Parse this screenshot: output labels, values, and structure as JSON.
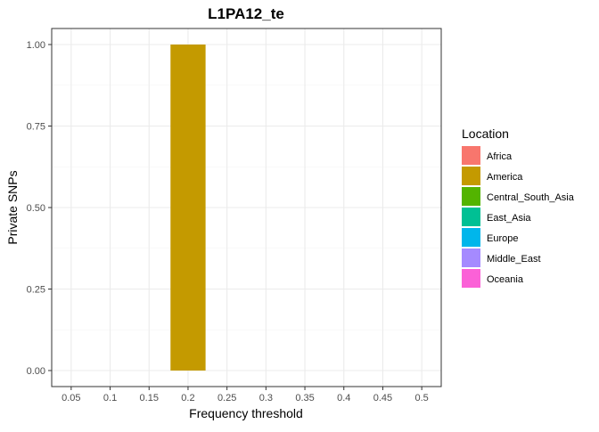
{
  "chart_data": {
    "type": "bar",
    "title": "L1PA12_te",
    "xlabel": "Frequency threshold",
    "ylabel": "Private SNPs",
    "x_ticks": [
      "0.05",
      "0.1",
      "0.15",
      "0.2",
      "0.25",
      "0.3",
      "0.35",
      "0.4",
      "0.45",
      "0.5"
    ],
    "y_ticks": [
      "0.00",
      "0.25",
      "0.50",
      "0.75",
      "1.00"
    ],
    "ylim": [
      0,
      1.05
    ],
    "grid": true,
    "legend_position": "right",
    "legend_title": "Location",
    "legend": [
      {
        "label": "Africa",
        "color": "#F8766D"
      },
      {
        "label": "America",
        "color": "#C49A00"
      },
      {
        "label": "Central_South_Asia",
        "color": "#53B400"
      },
      {
        "label": "East_Asia",
        "color": "#00C094"
      },
      {
        "label": "Europe",
        "color": "#00B6EB"
      },
      {
        "label": "Middle_East",
        "color": "#A58AFF"
      },
      {
        "label": "Oceania",
        "color": "#FB61D7"
      }
    ],
    "bars": [
      {
        "x": 0.2,
        "location": "America",
        "value": 1.0
      }
    ]
  }
}
